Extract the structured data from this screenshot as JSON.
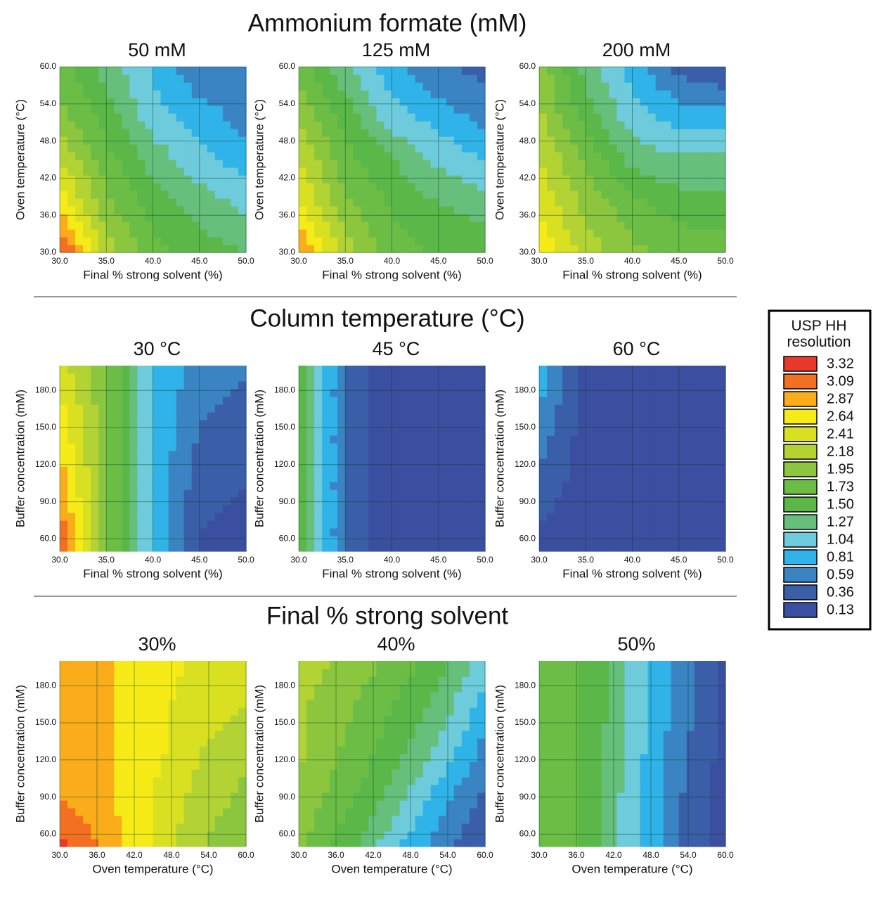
{
  "section_titles": [
    "Ammonium formate (mM)",
    "Column temperature (°C)",
    "Final % strong solvent"
  ],
  "legend": {
    "title": "USP HH resolution",
    "levels": [
      3.32,
      3.09,
      2.87,
      2.64,
      2.41,
      2.18,
      1.95,
      1.73,
      {
        "value": 1.5,
        "label": "1.50"
      },
      1.27,
      1.04,
      0.81,
      0.59,
      0.36,
      0.13
    ],
    "colors": [
      "#e8392a",
      "#f36f21",
      "#fbac1a",
      "#f6eb16",
      "#d9e021",
      "#b3d334",
      "#8cc63f",
      "#6cbd45",
      "#5bb848",
      "#66bf7a",
      "#6dcbdc",
      "#2fb3e8",
      "#3b84c4",
      "#3a5ea8",
      "#3b4fa0"
    ]
  },
  "chart_data": [
    {
      "type": "contour",
      "title": "50 mM",
      "xlabel": "Final % strong solvent (%)",
      "ylabel": "Oven temperature (°C)",
      "xlim": [
        30,
        50
      ],
      "xticks": [
        {
          "value": 30,
          "label": "30.0"
        },
        {
          "value": 35,
          "label": "35.0"
        },
        {
          "value": 40,
          "label": "40.0"
        },
        {
          "value": 45,
          "label": "45.0"
        },
        {
          "value": 50,
          "label": "50.0"
        }
      ],
      "ylim": [
        30,
        60
      ],
      "yticks": [
        {
          "value": 30,
          "label": "30.0"
        },
        {
          "value": 36,
          "label": "36.0"
        },
        {
          "value": 42,
          "label": "42.0"
        },
        {
          "value": 48,
          "label": "48.0"
        },
        {
          "value": 54,
          "label": "54.0"
        },
        {
          "value": 60,
          "label": "60.0"
        }
      ],
      "grid": true,
      "z": [
        [
          3.3,
          2.2,
          1.7,
          1.5,
          1.4
        ],
        [
          2.7,
          1.9,
          1.5,
          1.3,
          1.1
        ],
        [
          2.3,
          1.7,
          1.3,
          1.0,
          0.8
        ],
        [
          1.9,
          1.5,
          1.0,
          0.8,
          0.6
        ],
        [
          1.7,
          1.3,
          0.9,
          0.5,
          0.6
        ]
      ]
    },
    {
      "type": "contour",
      "title": "125 mM",
      "xlabel": "Final % strong solvent (%)",
      "ylabel": "Oven temperature (°C)",
      "xlim": [
        30,
        50
      ],
      "xticks": [
        {
          "value": 30,
          "label": "30.0"
        },
        {
          "value": 35,
          "label": "35.0"
        },
        {
          "value": 40,
          "label": "40.0"
        },
        {
          "value": 45,
          "label": "45.0"
        },
        {
          "value": 50,
          "label": "50.0"
        }
      ],
      "ylim": [
        30,
        60
      ],
      "yticks": [
        {
          "value": 30,
          "label": "30.0"
        },
        {
          "value": 36,
          "label": "36.0"
        },
        {
          "value": 42,
          "label": "42.0"
        },
        {
          "value": 48,
          "label": "48.0"
        },
        {
          "value": 54,
          "label": "54.0"
        },
        {
          "value": 60,
          "label": "60.0"
        }
      ],
      "grid": true,
      "z": [
        [
          3.0,
          2.2,
          1.7,
          1.6,
          1.5
        ],
        [
          2.6,
          1.9,
          1.6,
          1.4,
          1.3
        ],
        [
          2.3,
          1.7,
          1.4,
          1.1,
          0.9
        ],
        [
          2.0,
          1.5,
          1.0,
          0.8,
          0.6
        ],
        [
          1.8,
          1.2,
          0.8,
          0.5,
          0.4
        ]
      ]
    },
    {
      "type": "contour",
      "title": "200 mM",
      "xlabel": "Final % strong solvent (%)",
      "ylabel": "Oven temperature (°C)",
      "xlim": [
        30,
        50
      ],
      "xticks": [
        {
          "value": 30,
          "label": "30.0"
        },
        {
          "value": 35,
          "label": "35.0"
        },
        {
          "value": 40,
          "label": "40.0"
        },
        {
          "value": 45,
          "label": "45.0"
        },
        {
          "value": 50,
          "label": "50.0"
        }
      ],
      "ylim": [
        30,
        60
      ],
      "yticks": [
        {
          "value": 30,
          "label": "30.0"
        },
        {
          "value": 36,
          "label": "36.0"
        },
        {
          "value": 42,
          "label": "42.0"
        },
        {
          "value": 48,
          "label": "48.0"
        },
        {
          "value": 54,
          "label": "54.0"
        },
        {
          "value": 60,
          "label": "60.0"
        }
      ],
      "grid": true,
      "z": [
        [
          2.7,
          2.2,
          1.9,
          1.8,
          1.7
        ],
        [
          2.5,
          2.0,
          1.7,
          1.5,
          1.5
        ],
        [
          2.3,
          1.8,
          1.3,
          1.2,
          1.2
        ],
        [
          2.1,
          1.5,
          1.0,
          0.8,
          0.8
        ],
        [
          2.0,
          1.3,
          0.8,
          0.4,
          0.2
        ]
      ]
    },
    {
      "type": "contour",
      "title": "30 °C",
      "xlabel": "Final % strong solvent (%)",
      "ylabel": "Buffer concentration (mM)",
      "xlim": [
        30,
        50
      ],
      "xticks": [
        {
          "value": 30,
          "label": "30.0"
        },
        {
          "value": 35,
          "label": "35.0"
        },
        {
          "value": 40,
          "label": "40.0"
        },
        {
          "value": 45,
          "label": "45.0"
        },
        {
          "value": 50,
          "label": "50.0"
        }
      ],
      "ylim": [
        50,
        200
      ],
      "yticks": [
        {
          "value": 60,
          "label": "60.0"
        },
        {
          "value": 90,
          "label": "90.0"
        },
        {
          "value": 120,
          "label": "120.0"
        },
        {
          "value": 150,
          "label": "150.0"
        },
        {
          "value": 180,
          "label": "180.0"
        }
      ],
      "grid": true,
      "z": [
        [
          3.2,
          1.9,
          0.9,
          0.2,
          0.13
        ],
        [
          3.0,
          1.9,
          0.9,
          0.3,
          0.2
        ],
        [
          2.8,
          1.9,
          0.9,
          0.4,
          0.3
        ],
        [
          2.6,
          1.9,
          0.9,
          0.5,
          0.4
        ],
        [
          2.4,
          1.9,
          0.9,
          0.6,
          0.5
        ]
      ]
    },
    {
      "type": "contour",
      "title": "45 °C",
      "xlabel": "Final % strong solvent (%)",
      "ylabel": "Buffer concentration (mM)",
      "xlim": [
        30,
        50
      ],
      "xticks": [
        {
          "value": 30,
          "label": "30.0"
        },
        {
          "value": 35,
          "label": "35.0"
        },
        {
          "value": 40,
          "label": "40.0"
        },
        {
          "value": 45,
          "label": "45.0"
        },
        {
          "value": 50,
          "label": "50.0"
        }
      ],
      "ylim": [
        50,
        200
      ],
      "yticks": [
        {
          "value": 60,
          "label": "60.0"
        },
        {
          "value": 90,
          "label": "90.0"
        },
        {
          "value": 120,
          "label": "120.0"
        },
        {
          "value": 150,
          "label": "150.0"
        },
        {
          "value": 180,
          "label": "180.0"
        }
      ],
      "grid": true,
      "z": [
        [
          1.6,
          0.4,
          0.13,
          0.13,
          0.13
        ],
        [
          1.6,
          0.4,
          0.13,
          0.13,
          0.13
        ],
        [
          1.6,
          0.4,
          0.13,
          0.13,
          0.13
        ],
        [
          1.6,
          0.4,
          0.13,
          0.13,
          0.13
        ],
        [
          1.6,
          0.4,
          0.13,
          0.13,
          0.13
        ]
      ]
    },
    {
      "type": "contour",
      "title": "60 °C",
      "xlabel": "Final % strong solvent (%)",
      "ylabel": "Buffer concentration (mM)",
      "xlim": [
        30,
        50
      ],
      "xticks": [
        {
          "value": 30,
          "label": "30.0"
        },
        {
          "value": 35,
          "label": "35.0"
        },
        {
          "value": 40,
          "label": "40.0"
        },
        {
          "value": 45,
          "label": "45.0"
        },
        {
          "value": 50,
          "label": "50.0"
        }
      ],
      "ylim": [
        50,
        200
      ],
      "yticks": [
        {
          "value": 60,
          "label": "60.0"
        },
        {
          "value": 90,
          "label": "90.0"
        },
        {
          "value": 120,
          "label": "120.0"
        },
        {
          "value": 150,
          "label": "150.0"
        },
        {
          "value": 180,
          "label": "180.0"
        }
      ],
      "grid": true,
      "z": [
        [
          0.13,
          0.13,
          0.13,
          0.13,
          0.13
        ],
        [
          0.3,
          0.13,
          0.13,
          0.13,
          0.13
        ],
        [
          0.5,
          0.13,
          0.13,
          0.13,
          0.13
        ],
        [
          0.7,
          0.13,
          0.13,
          0.13,
          0.13
        ],
        [
          0.9,
          0.13,
          0.13,
          0.13,
          0.13
        ]
      ]
    },
    {
      "type": "contour",
      "title": "30%",
      "xlabel": "Oven temperature (°C)",
      "ylabel": "Buffer concentration (mM)",
      "xlim": [
        30,
        60
      ],
      "xticks": [
        {
          "value": 30,
          "label": "30.0"
        },
        {
          "value": 36,
          "label": "36.0"
        },
        {
          "value": 42,
          "label": "42.0"
        },
        {
          "value": 48,
          "label": "48.0"
        },
        {
          "value": 54,
          "label": "54.0"
        },
        {
          "value": 60,
          "label": "60.0"
        }
      ],
      "ylim": [
        50,
        200
      ],
      "yticks": [
        {
          "value": 60,
          "label": "60.0"
        },
        {
          "value": 90,
          "label": "90.0"
        },
        {
          "value": 120,
          "label": "120.0"
        },
        {
          "value": 150,
          "label": "150.0"
        },
        {
          "value": 180,
          "label": "180.0"
        }
      ],
      "grid": true,
      "z": [
        [
          3.3,
          2.9,
          2.5,
          2.1,
          1.8
        ],
        [
          3.0,
          2.8,
          2.5,
          2.2,
          2.0
        ],
        [
          2.9,
          2.8,
          2.6,
          2.3,
          2.1
        ],
        [
          2.8,
          2.8,
          2.6,
          2.4,
          2.3
        ],
        [
          2.8,
          2.8,
          2.6,
          2.5,
          2.4
        ]
      ]
    },
    {
      "type": "contour",
      "title": "40%",
      "xlabel": "Oven temperature (°C)",
      "ylabel": "Buffer concentration (mM)",
      "xlim": [
        30,
        60
      ],
      "xticks": [
        {
          "value": 30,
          "label": "30.0"
        },
        {
          "value": 36,
          "label": "36.0"
        },
        {
          "value": 42,
          "label": "42.0"
        },
        {
          "value": 48,
          "label": "48.0"
        },
        {
          "value": 54,
          "label": "54.0"
        },
        {
          "value": 60,
          "label": "60.0"
        }
      ],
      "ylim": [
        50,
        200
      ],
      "yticks": [
        {
          "value": 60,
          "label": "60.0"
        },
        {
          "value": 90,
          "label": "90.0"
        },
        {
          "value": 120,
          "label": "120.0"
        },
        {
          "value": 150,
          "label": "150.0"
        },
        {
          "value": 180,
          "label": "180.0"
        }
      ],
      "grid": true,
      "z": [
        [
          1.9,
          1.5,
          1.0,
          0.6,
          0.2
        ],
        [
          2.0,
          1.7,
          1.3,
          0.8,
          0.4
        ],
        [
          2.1,
          1.8,
          1.5,
          1.1,
          0.6
        ],
        [
          2.1,
          1.9,
          1.6,
          1.3,
          0.8
        ],
        [
          2.2,
          2.0,
          1.8,
          1.5,
          1.0
        ]
      ]
    },
    {
      "type": "contour",
      "title": "50%",
      "xlabel": "Oven temperature (°C)",
      "ylabel": "Buffer concentration (mM)",
      "xlim": [
        30,
        60
      ],
      "xticks": [
        {
          "value": 30,
          "label": "30.0"
        },
        {
          "value": 36,
          "label": "36.0"
        },
        {
          "value": 42,
          "label": "42.0"
        },
        {
          "value": 48,
          "label": "48.0"
        },
        {
          "value": 54,
          "label": "54.0"
        },
        {
          "value": 60,
          "label": "60.0"
        }
      ],
      "ylim": [
        50,
        200
      ],
      "yticks": [
        {
          "value": 60,
          "label": "60.0"
        },
        {
          "value": 90,
          "label": "90.0"
        },
        {
          "value": 120,
          "label": "120.0"
        },
        {
          "value": 150,
          "label": "150.0"
        },
        {
          "value": 180,
          "label": "180.0"
        }
      ],
      "grid": true,
      "z": [
        [
          1.7,
          1.6,
          1.0,
          0.5,
          0.13
        ],
        [
          1.7,
          1.6,
          1.0,
          0.5,
          0.13
        ],
        [
          1.7,
          1.6,
          1.05,
          0.55,
          0.15
        ],
        [
          1.7,
          1.6,
          1.1,
          0.6,
          0.2
        ],
        [
          1.7,
          1.6,
          1.1,
          0.6,
          0.2
        ]
      ]
    }
  ]
}
